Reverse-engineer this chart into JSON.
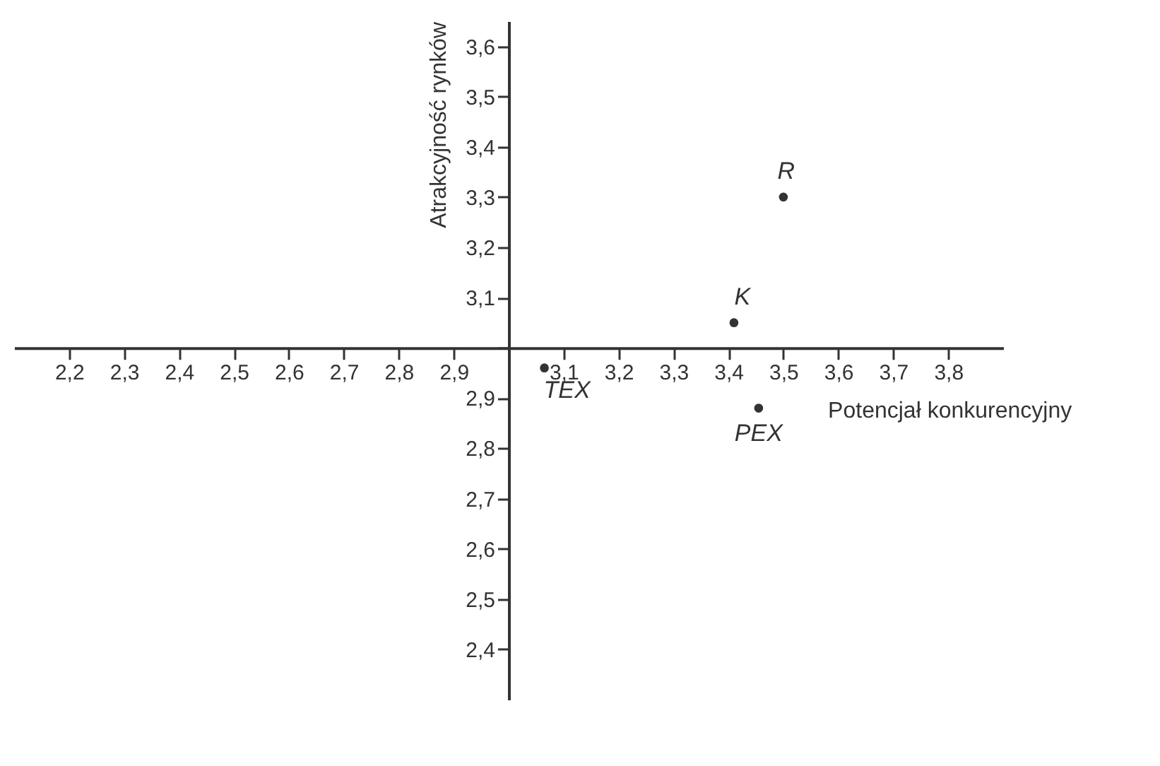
{
  "chart_data": {
    "type": "scatter",
    "xlabel": "Potencjał konkurencyjny",
    "ylabel": "Atrakcyjność rynków",
    "x": [
      3.5,
      3.41,
      3.065,
      3.455
    ],
    "series": [
      {
        "color": "#333333",
        "values": [
          3.3,
          3.05,
          2.96,
          2.88
        ]
      }
    ],
    "marker": "circle",
    "grid": false,
    "xlim": [
      2.1,
      3.9
    ],
    "ylim": [
      2.3,
      3.65
    ],
    "xticks": [
      {
        "value": 2.2,
        "label": "2,2"
      },
      {
        "value": 2.3,
        "label": "2,3"
      },
      {
        "value": 2.4,
        "label": "2,4"
      },
      {
        "value": 2.5,
        "label": "2,5"
      },
      {
        "value": 2.6,
        "label": "2,6"
      },
      {
        "value": 2.7,
        "label": "2,7"
      },
      {
        "value": 2.8,
        "label": "2,8"
      },
      {
        "value": 2.9,
        "label": "2,9"
      },
      {
        "value": 3.0,
        "label": null
      },
      {
        "value": 3.1,
        "label": "3,1"
      },
      {
        "value": 3.2,
        "label": "3,2"
      },
      {
        "value": 3.3,
        "label": "3,3"
      },
      {
        "value": 3.4,
        "label": "3,4"
      },
      {
        "value": 3.5,
        "label": "3,5"
      },
      {
        "value": 3.6,
        "label": "3,6"
      },
      {
        "value": 3.7,
        "label": "3,7"
      },
      {
        "value": 3.8,
        "label": "3,8"
      }
    ],
    "yticks": [
      {
        "value": 2.4,
        "label": "2,4"
      },
      {
        "value": 2.5,
        "label": "2,5"
      },
      {
        "value": 2.6,
        "label": "2,6"
      },
      {
        "value": 2.7,
        "label": "2,7"
      },
      {
        "value": 2.8,
        "label": "2,8"
      },
      {
        "value": 2.9,
        "label": "2,9"
      },
      {
        "value": 3.0,
        "label": null
      },
      {
        "value": 3.1,
        "label": "3,1"
      },
      {
        "value": 3.2,
        "label": "3,2"
      },
      {
        "value": 3.3,
        "label": "3,3"
      },
      {
        "value": 3.4,
        "label": "3,4"
      },
      {
        "value": 3.5,
        "label": "3,5"
      },
      {
        "value": 3.6,
        "label": "3,6"
      }
    ],
    "annotations": [
      "R",
      "K",
      "TEX",
      "PEX"
    ]
  }
}
